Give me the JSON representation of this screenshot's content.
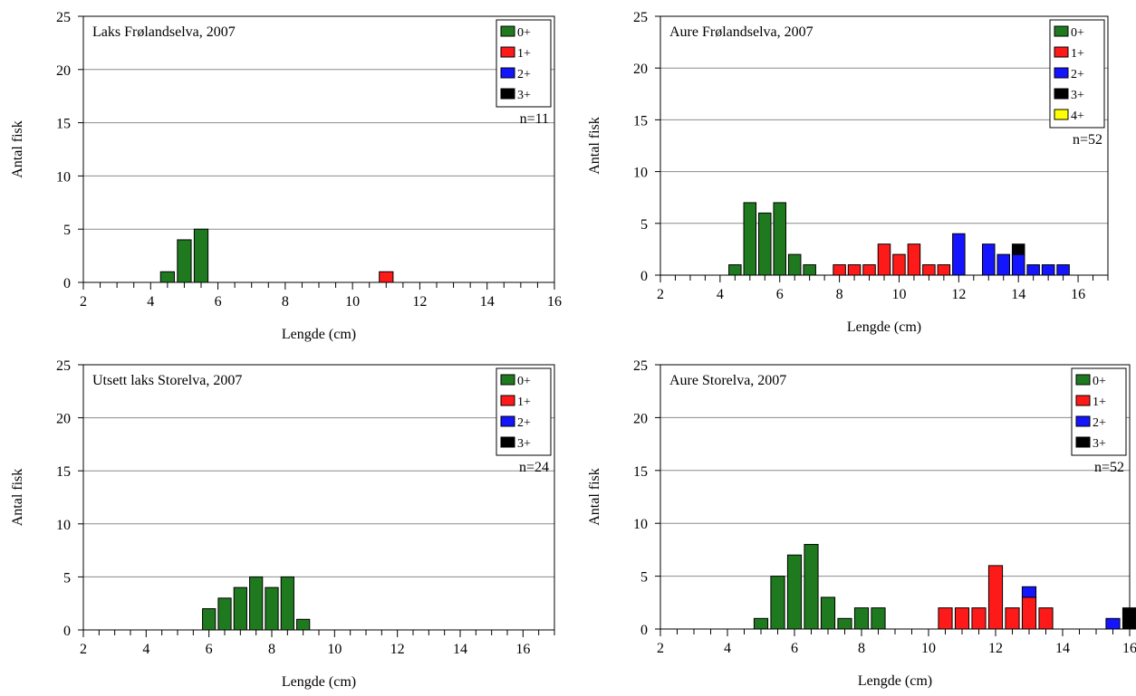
{
  "colors": {
    "0+": "#1f7a1f",
    "1+": "#ff1a1a",
    "2+": "#1414ff",
    "3+": "#000000",
    "4+": "#ffff00"
  },
  "chart_data": [
    {
      "type": "bar",
      "stacked": true,
      "title": "Laks Frølandselva, 2007",
      "xlabel": "Lengde (cm)",
      "ylabel": "Antal fisk",
      "ylim": [
        0,
        25
      ],
      "yticks": [
        0,
        5,
        10,
        15,
        20,
        25
      ],
      "xlim": [
        2,
        16
      ],
      "xticks": [
        2,
        4,
        6,
        8,
        10,
        12,
        14,
        16
      ],
      "bin_width": 0.5,
      "grid": true,
      "legend_position": "top-right",
      "legend": [
        "0+",
        "1+",
        "2+",
        "3+"
      ],
      "n_label": "n=11",
      "bars": [
        {
          "x": 4.5,
          "parts": [
            {
              "cls": "0+",
              "v": 1
            }
          ]
        },
        {
          "x": 5.0,
          "parts": [
            {
              "cls": "0+",
              "v": 4
            }
          ]
        },
        {
          "x": 5.5,
          "parts": [
            {
              "cls": "0+",
              "v": 5
            }
          ]
        },
        {
          "x": 11.0,
          "parts": [
            {
              "cls": "1+",
              "v": 1
            }
          ]
        }
      ]
    },
    {
      "type": "bar",
      "stacked": true,
      "title": "Aure Frølandselva, 2007",
      "xlabel": "Lengde (cm)",
      "ylabel": "Antal fisk",
      "ylim": [
        0,
        25
      ],
      "yticks": [
        0,
        5,
        10,
        15,
        20,
        25
      ],
      "xlim": [
        2,
        17
      ],
      "xticks": [
        2,
        4,
        6,
        8,
        10,
        12,
        14,
        16
      ],
      "bin_width": 0.5,
      "grid": true,
      "legend_position": "top-right",
      "legend": [
        "0+",
        "1+",
        "2+",
        "3+",
        "4+"
      ],
      "n_label": "n=52",
      "bars": [
        {
          "x": 4.5,
          "parts": [
            {
              "cls": "0+",
              "v": 1
            }
          ]
        },
        {
          "x": 5.0,
          "parts": [
            {
              "cls": "0+",
              "v": 7
            }
          ]
        },
        {
          "x": 5.5,
          "parts": [
            {
              "cls": "0+",
              "v": 6
            }
          ]
        },
        {
          "x": 6.0,
          "parts": [
            {
              "cls": "0+",
              "v": 7
            }
          ]
        },
        {
          "x": 6.5,
          "parts": [
            {
              "cls": "0+",
              "v": 2
            }
          ]
        },
        {
          "x": 7.0,
          "parts": [
            {
              "cls": "0+",
              "v": 1
            }
          ]
        },
        {
          "x": 8.0,
          "parts": [
            {
              "cls": "1+",
              "v": 1
            }
          ]
        },
        {
          "x": 8.5,
          "parts": [
            {
              "cls": "1+",
              "v": 1
            }
          ]
        },
        {
          "x": 9.0,
          "parts": [
            {
              "cls": "1+",
              "v": 1
            }
          ]
        },
        {
          "x": 9.5,
          "parts": [
            {
              "cls": "1+",
              "v": 3
            }
          ]
        },
        {
          "x": 10.0,
          "parts": [
            {
              "cls": "1+",
              "v": 2
            }
          ]
        },
        {
          "x": 10.5,
          "parts": [
            {
              "cls": "1+",
              "v": 3
            }
          ]
        },
        {
          "x": 11.0,
          "parts": [
            {
              "cls": "1+",
              "v": 1
            }
          ]
        },
        {
          "x": 11.5,
          "parts": [
            {
              "cls": "1+",
              "v": 1
            }
          ]
        },
        {
          "x": 12.0,
          "parts": [
            {
              "cls": "2+",
              "v": 4
            }
          ]
        },
        {
          "x": 13.0,
          "parts": [
            {
              "cls": "2+",
              "v": 3
            }
          ]
        },
        {
          "x": 13.5,
          "parts": [
            {
              "cls": "2+",
              "v": 2
            }
          ]
        },
        {
          "x": 14.0,
          "parts": [
            {
              "cls": "2+",
              "v": 2
            },
            {
              "cls": "3+",
              "v": 1
            }
          ]
        },
        {
          "x": 14.5,
          "parts": [
            {
              "cls": "2+",
              "v": 1
            }
          ]
        },
        {
          "x": 15.0,
          "parts": [
            {
              "cls": "2+",
              "v": 1
            }
          ]
        },
        {
          "x": 15.5,
          "parts": [
            {
              "cls": "2+",
              "v": 1
            }
          ]
        }
      ]
    },
    {
      "type": "bar",
      "stacked": true,
      "title": "Utsett laks Storelva, 2007",
      "xlabel": "Lengde (cm)",
      "ylabel": "Antal fisk",
      "ylim": [
        0,
        25
      ],
      "yticks": [
        0,
        5,
        10,
        15,
        20,
        25
      ],
      "xlim": [
        2,
        17
      ],
      "xticks": [
        2,
        4,
        6,
        8,
        10,
        12,
        14,
        16
      ],
      "bin_width": 0.5,
      "grid": true,
      "legend_position": "top-right",
      "legend": [
        "0+",
        "1+",
        "2+",
        "3+"
      ],
      "n_label": "n=24",
      "bars": [
        {
          "x": 6.0,
          "parts": [
            {
              "cls": "0+",
              "v": 2
            }
          ]
        },
        {
          "x": 6.5,
          "parts": [
            {
              "cls": "0+",
              "v": 3
            }
          ]
        },
        {
          "x": 7.0,
          "parts": [
            {
              "cls": "0+",
              "v": 4
            }
          ]
        },
        {
          "x": 7.5,
          "parts": [
            {
              "cls": "0+",
              "v": 5
            }
          ]
        },
        {
          "x": 8.0,
          "parts": [
            {
              "cls": "0+",
              "v": 4
            }
          ]
        },
        {
          "x": 8.5,
          "parts": [
            {
              "cls": "0+",
              "v": 5
            }
          ]
        },
        {
          "x": 9.0,
          "parts": [
            {
              "cls": "0+",
              "v": 1
            }
          ]
        }
      ]
    },
    {
      "type": "bar",
      "stacked": true,
      "title": "Aure Storelva, 2007",
      "xlabel": "Lengde (cm)",
      "ylabel": "Antal fisk",
      "ylim": [
        0,
        25
      ],
      "yticks": [
        0,
        5,
        10,
        15,
        20,
        25
      ],
      "xlim": [
        2,
        16
      ],
      "xticks": [
        2,
        4,
        6,
        8,
        10,
        12,
        14,
        16
      ],
      "bin_width": 0.5,
      "grid": true,
      "legend_position": "top-right",
      "legend": [
        "0+",
        "1+",
        "2+",
        "3+"
      ],
      "n_label": "n=52",
      "bars": [
        {
          "x": 5.0,
          "parts": [
            {
              "cls": "0+",
              "v": 1
            }
          ]
        },
        {
          "x": 5.5,
          "parts": [
            {
              "cls": "0+",
              "v": 5
            }
          ]
        },
        {
          "x": 6.0,
          "parts": [
            {
              "cls": "0+",
              "v": 7
            }
          ]
        },
        {
          "x": 6.5,
          "parts": [
            {
              "cls": "0+",
              "v": 8
            }
          ]
        },
        {
          "x": 7.0,
          "parts": [
            {
              "cls": "0+",
              "v": 3
            }
          ]
        },
        {
          "x": 7.5,
          "parts": [
            {
              "cls": "0+",
              "v": 1
            }
          ]
        },
        {
          "x": 8.0,
          "parts": [
            {
              "cls": "0+",
              "v": 2
            }
          ]
        },
        {
          "x": 8.5,
          "parts": [
            {
              "cls": "0+",
              "v": 2
            }
          ]
        },
        {
          "x": 10.5,
          "parts": [
            {
              "cls": "1+",
              "v": 2
            }
          ]
        },
        {
          "x": 11.0,
          "parts": [
            {
              "cls": "1+",
              "v": 2
            }
          ]
        },
        {
          "x": 11.5,
          "parts": [
            {
              "cls": "1+",
              "v": 2
            }
          ]
        },
        {
          "x": 12.0,
          "parts": [
            {
              "cls": "1+",
              "v": 6
            }
          ]
        },
        {
          "x": 12.5,
          "parts": [
            {
              "cls": "1+",
              "v": 2
            }
          ]
        },
        {
          "x": 13.0,
          "parts": [
            {
              "cls": "1+",
              "v": 3
            },
            {
              "cls": "2+",
              "v": 1
            }
          ]
        },
        {
          "x": 13.5,
          "parts": [
            {
              "cls": "1+",
              "v": 2
            }
          ]
        },
        {
          "x": 15.5,
          "parts": [
            {
              "cls": "2+",
              "v": 1
            }
          ]
        },
        {
          "x": 16.0,
          "parts": [
            {
              "cls": "3+",
              "v": 2
            }
          ]
        }
      ]
    }
  ]
}
